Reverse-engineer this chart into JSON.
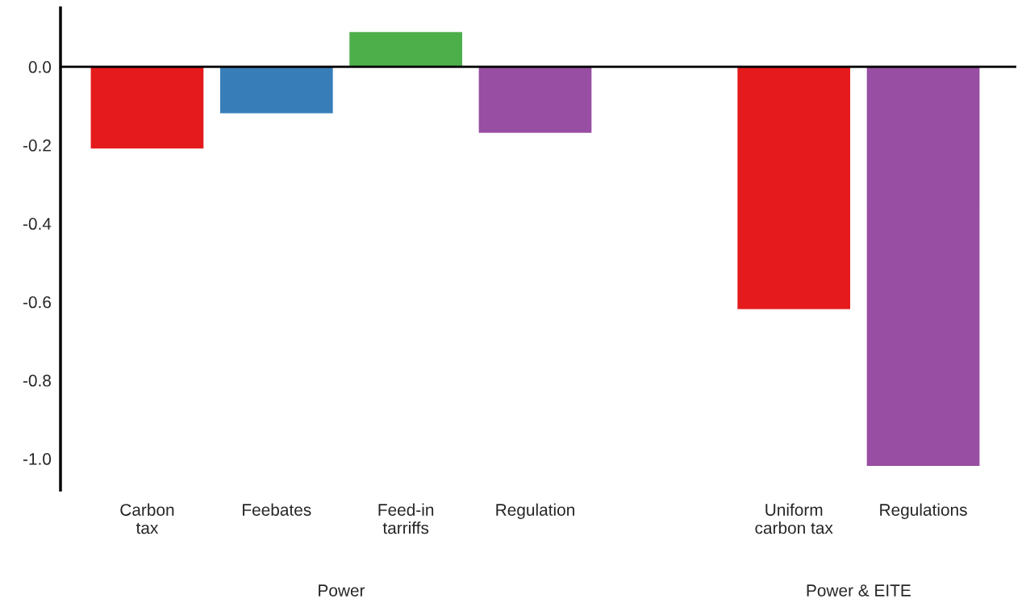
{
  "chart_data": {
    "type": "bar",
    "categories": [
      "Carbon\ntax",
      "Feebates",
      "Feed-in\ntarriffs",
      "Regulation",
      null,
      "Uniform\ncarbon tax",
      "Regulations"
    ],
    "colors": [
      "#e41a1c",
      "#377eb8",
      "#4daf4a",
      "#984ea3",
      "#ffffff",
      "#e41a1c",
      "#984ea3"
    ],
    "values": [
      -0.21,
      -0.12,
      0.09,
      -0.17,
      null,
      -0.62,
      -1.02
    ],
    "ylim": [
      -1.08,
      0.15
    ],
    "yticks": [
      {
        "value": 0,
        "label": "0.0"
      },
      -0.2,
      -0.4,
      -0.6,
      -0.8,
      {
        "value": -1,
        "label": "-1.0"
      }
    ],
    "ref_lines": [
      {
        "axis": "y",
        "value": 0,
        "color": "#000000"
      }
    ],
    "annotations": [
      "Power",
      "Power & EITE"
    ],
    "grid": false
  }
}
